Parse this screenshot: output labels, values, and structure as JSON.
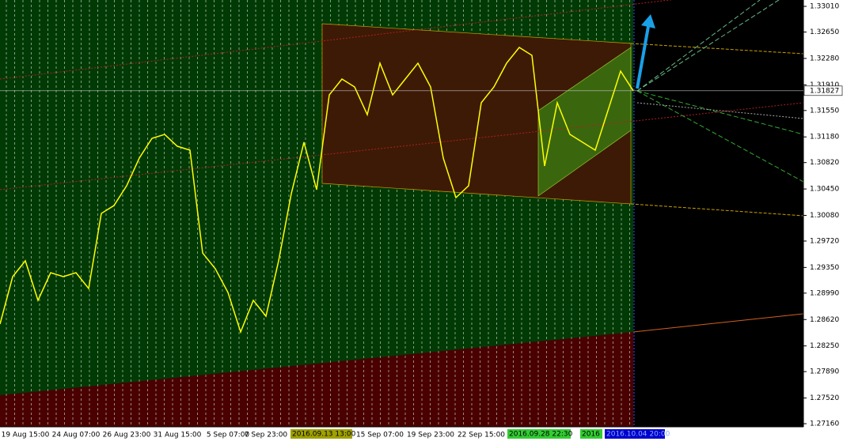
{
  "chart_data": {
    "type": "line",
    "categories": [
      null,
      null,
      "19 Aug 15:00",
      null,
      null,
      null,
      "24 Aug 07:00",
      null,
      null,
      null,
      "26 Aug 23:00",
      null,
      null,
      null,
      "31 Aug 15:00",
      null,
      null,
      null,
      "5 Sep 07:00",
      null,
      null,
      "7 Sep 23:00",
      null,
      null,
      null,
      null,
      null,
      null,
      null,
      null,
      "15 Sep 07:00",
      null,
      null,
      null,
      "19 Sep 23:00",
      null,
      null,
      null,
      "22 Sep 15:00",
      null,
      null,
      null,
      null,
      null,
      null,
      null,
      null,
      null,
      null,
      null,
      null
    ],
    "series": [
      {
        "color": "#ffff00",
        "values": [
          1.28556,
          1.29221,
          1.29443,
          1.28889,
          1.29276,
          1.29221,
          1.29276,
          1.29055,
          1.30107,
          1.30218,
          1.30495,
          1.30883,
          1.3116,
          1.31215,
          1.31049,
          1.30994,
          1.29553,
          1.29332,
          1.28999,
          1.28445,
          1.28889,
          1.28667,
          1.29443,
          1.30384,
          1.31105,
          1.3044,
          1.31769,
          1.31991,
          1.3188,
          1.31492,
          1.32213,
          1.31769,
          1.31991,
          1.32213,
          1.3188,
          1.30883,
          1.30329,
          1.30495,
          1.31659,
          1.3188,
          1.32213,
          1.32434,
          1.32323,
          1.30772,
          1.31659,
          1.31215,
          1.31105,
          1.30994,
          1.31548,
          1.32102,
          1.31827
        ]
      }
    ],
    "ylim": [
      1.27116,
      1.33099
    ],
    "yticks": [
      {
        "value": 1.3301,
        "label": "1.33010"
      },
      {
        "value": 1.3265,
        "label": "1.32650"
      },
      {
        "value": 1.3228,
        "label": "1.32280"
      },
      {
        "value": 1.3191,
        "label": "1.31910"
      },
      {
        "value": 1.3155,
        "label": "1.31550"
      },
      {
        "value": 1.3118,
        "label": "1.31180"
      },
      {
        "value": 1.3082,
        "label": "1.30820"
      },
      {
        "value": 1.3045,
        "label": "1.30450"
      },
      {
        "value": 1.3008,
        "label": "1.30080"
      },
      {
        "value": 1.2972,
        "label": "1.29720"
      },
      {
        "value": 1.2935,
        "label": "1.29350"
      },
      {
        "value": 1.2899,
        "label": "1.28990"
      },
      {
        "value": 1.2862,
        "label": "1.28620"
      },
      {
        "value": 1.2825,
        "label": "1.28250"
      },
      {
        "value": 1.2789,
        "label": "1.27890"
      },
      {
        "value": 1.2752,
        "label": "1.27520"
      },
      {
        "value": 1.2716,
        "label": "1.27160"
      }
    ],
    "current_price": 1.31827,
    "markers": [
      {
        "label": "2016.09.13 13:00",
        "color": "#a0a000"
      },
      {
        "label": "2016.09.28 22:30",
        "color": "#33cc33"
      },
      {
        "label": "2016",
        "color": "#33cc33"
      },
      {
        "label": "2016.10.04 20:00",
        "color": "#0000cc"
      }
    ]
  }
}
